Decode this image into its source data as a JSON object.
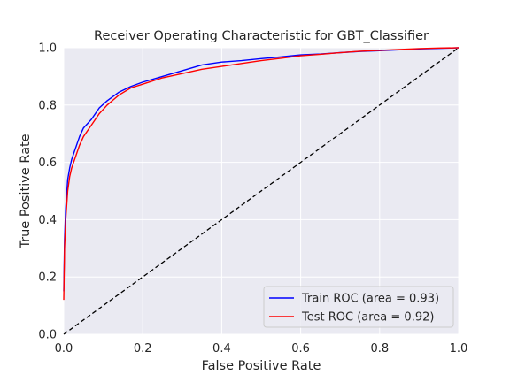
{
  "chart_data": {
    "type": "line",
    "title": "Receiver Operating Characteristic for GBT_Classifier",
    "xlabel": "False Positive Rate",
    "ylabel": "True Positive Rate",
    "xlim": [
      0.0,
      1.0
    ],
    "ylim": [
      0.0,
      1.0
    ],
    "grid": true,
    "legend_position": "lower-right",
    "x_ticks": [
      "0.0",
      "0.2",
      "0.4",
      "0.6",
      "0.8",
      "1.0"
    ],
    "y_ticks": [
      "0.0",
      "0.2",
      "0.4",
      "0.6",
      "0.8",
      "1.0"
    ],
    "colors": {
      "plot_background": "#eaeaf2",
      "grid": "#ffffff",
      "train": "#0000ff",
      "test": "#ff0000",
      "diagonal": "#000000"
    },
    "series": [
      {
        "name": "Train ROC (area = 0.93)",
        "color": "#0000ff",
        "x": [
          0.0,
          0.002,
          0.005,
          0.01,
          0.015,
          0.02,
          0.03,
          0.04,
          0.05,
          0.07,
          0.09,
          0.11,
          0.14,
          0.17,
          0.2,
          0.25,
          0.3,
          0.35,
          0.4,
          0.45,
          0.5,
          0.55,
          0.6,
          0.65,
          0.7,
          0.75,
          0.8,
          0.85,
          0.9,
          0.95,
          1.0
        ],
        "y": [
          0.15,
          0.33,
          0.44,
          0.54,
          0.58,
          0.61,
          0.65,
          0.69,
          0.72,
          0.75,
          0.79,
          0.815,
          0.845,
          0.865,
          0.88,
          0.9,
          0.92,
          0.94,
          0.95,
          0.955,
          0.962,
          0.968,
          0.975,
          0.978,
          0.983,
          0.987,
          0.99,
          0.993,
          0.996,
          0.998,
          1.0
        ]
      },
      {
        "name": "Test ROC (area = 0.92)",
        "color": "#ff0000",
        "x": [
          0.0,
          0.002,
          0.005,
          0.01,
          0.015,
          0.02,
          0.03,
          0.04,
          0.05,
          0.07,
          0.09,
          0.11,
          0.14,
          0.17,
          0.2,
          0.25,
          0.3,
          0.35,
          0.4,
          0.45,
          0.5,
          0.55,
          0.6,
          0.65,
          0.7,
          0.75,
          0.8,
          0.85,
          0.9,
          0.95,
          1.0
        ],
        "y": [
          0.12,
          0.3,
          0.4,
          0.5,
          0.55,
          0.58,
          0.62,
          0.66,
          0.69,
          0.73,
          0.77,
          0.8,
          0.835,
          0.86,
          0.873,
          0.895,
          0.91,
          0.925,
          0.935,
          0.945,
          0.955,
          0.963,
          0.972,
          0.977,
          0.983,
          0.988,
          0.991,
          0.994,
          0.997,
          0.999,
          1.0
        ]
      },
      {
        "name": "",
        "color": "#000000",
        "dashed": true,
        "x": [
          0.0,
          1.0
        ],
        "y": [
          0.0,
          1.0
        ]
      }
    ]
  }
}
